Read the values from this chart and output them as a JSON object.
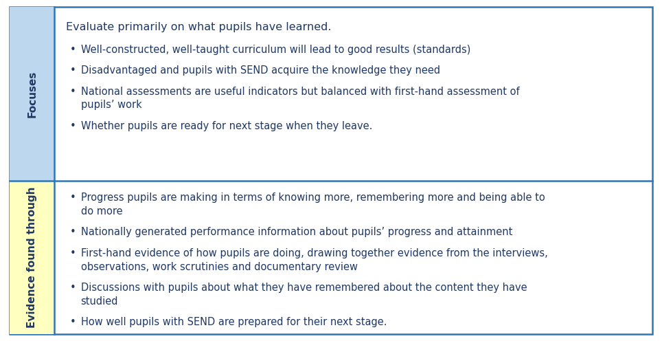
{
  "fig_width": 9.64,
  "fig_height": 4.96,
  "dpi": 100,
  "bg_color": "#ffffff",
  "border_color": "#2E75B6",
  "left_col_bg_top": "#BDD7EE",
  "left_col_bg_bottom": "#FFFFC0",
  "row1_label": "Focuses",
  "row2_label": "Evidence found through",
  "row1_header": "Evaluate primarily on what pupils have learned.",
  "row1_bullets": [
    "Well-constructed, well-taught curriculum will lead to good results (standards)",
    "Disadvantaged and pupils with SEND acquire the knowledge they need",
    "National assessments are useful indicators but balanced with first-hand assessment of\npupils’ work",
    "Whether pupils are ready for next stage when they leave."
  ],
  "row2_bullets": [
    "Progress pupils are making in terms of knowing more, remembering more and being able to\ndo more",
    "Nationally generated performance information about pupils’ progress and attainment",
    "First-hand evidence of how pupils are doing, drawing together evidence from the interviews,\nobservations, work scrutinies and documentary review",
    "Discussions with pupils about what they have remembered about the content they have\nstudied",
    "How well pupils with SEND are prepared for their next stage."
  ],
  "text_color": "#1F3864",
  "header_fontsize": 11.5,
  "bullet_fontsize": 10.5,
  "label_fontsize": 11
}
